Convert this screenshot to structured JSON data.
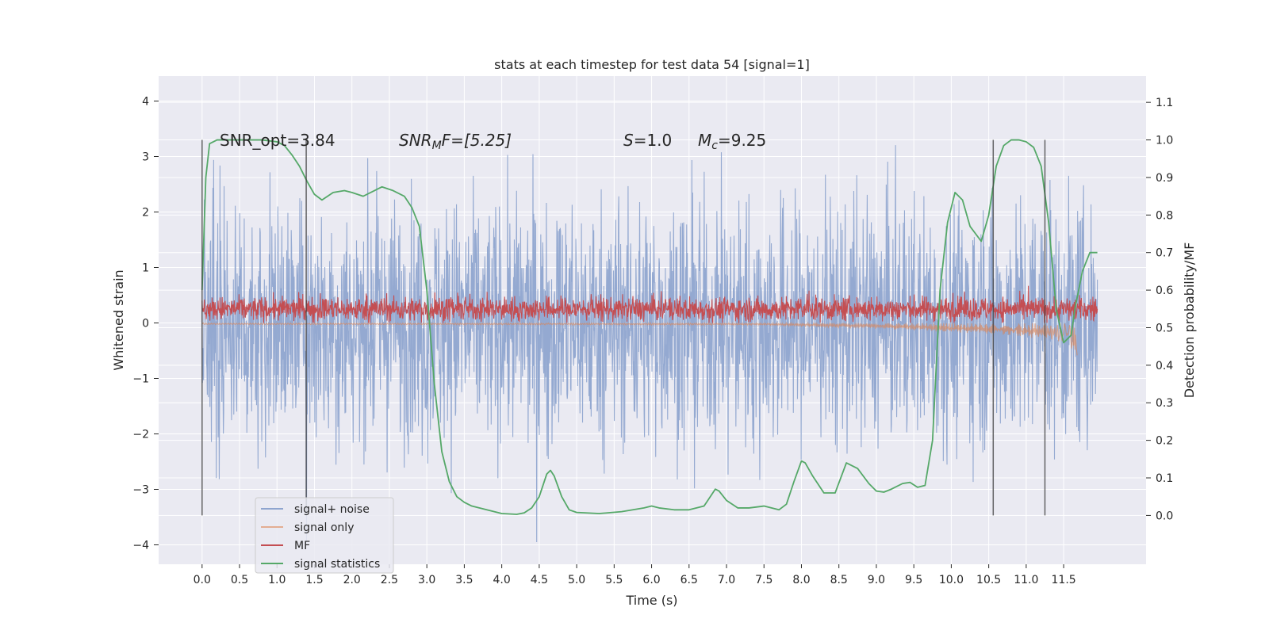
{
  "chart_data": {
    "type": "line",
    "title": "stats at each timestep for test data 54 [signal=1]",
    "xlabel": "Time (s)",
    "ylabel_left": "Whitened strain",
    "ylabel_right": "Detection probability/MF",
    "xlim": [
      -0.58,
      12.6
    ],
    "ylim_left": [
      -4.35,
      4.45
    ],
    "ylim_right": [
      -0.13,
      1.17
    ],
    "x_ticks": [
      "0.0",
      "0.5",
      "1.0",
      "1.5",
      "2.0",
      "2.5",
      "3.0",
      "3.5",
      "4.0",
      "4.5",
      "5.0",
      "5.5",
      "6.0",
      "6.5",
      "7.0",
      "7.5",
      "8.0",
      "8.5",
      "9.0",
      "9.5",
      "10.0",
      "10.5",
      "11.0",
      "11.5"
    ],
    "y_ticks_left": [
      "4",
      "3",
      "2",
      "1",
      "0",
      "−1",
      "−2",
      "−3",
      "−4"
    ],
    "y_ticks_right": [
      "1.1",
      "1.0",
      "0.9",
      "0.8",
      "0.7",
      "0.6",
      "0.5",
      "0.4",
      "0.3",
      "0.2",
      "0.1",
      "0.0"
    ],
    "grid": true,
    "legend_position": "lower-left",
    "annotations": {
      "snr_opt": "SNR_opt=3.84",
      "snr_mf": "SNR",
      "snr_mf_sub": "M",
      "snr_mf_rest": "F=[5.25]",
      "s_label": "S",
      "s_value": "=1.0",
      "mc_label": "M",
      "mc_sub": "c",
      "mc_value": "=9.25"
    },
    "colors": {
      "background": "#eaeaf2",
      "grid": "#ffffff",
      "signal_noise": "#8fa5cf",
      "signal_only": "#dd8452",
      "mf": "#c44e52",
      "statistics": "#55a868",
      "vline": "#404040"
    },
    "vertical_lines_x": [
      0.0,
      1.39,
      10.56,
      11.25
    ],
    "series": [
      {
        "name": "signal+ noise",
        "kind": "noise_band",
        "envelope_upper_approx": 2.4,
        "envelope_lower_approx": -2.4,
        "dense_core_upper": 1.35,
        "dense_core_lower": -1.35,
        "x_range": [
          0.0,
          11.95
        ]
      },
      {
        "name": "signal only",
        "kind": "chirp",
        "x_range": [
          0.0,
          11.68
        ],
        "peak_negative_near_end": -0.7
      },
      {
        "name": "MF",
        "kind": "noise_band",
        "center": 0.25,
        "envelope_upper_approx": 0.55,
        "envelope_lower_approx": 0.0,
        "x_range": [
          0.0,
          11.95
        ]
      },
      {
        "name": "signal statistics",
        "axis": "right",
        "x": [
          0.0,
          0.05,
          0.1,
          0.2,
          0.3,
          0.5,
          0.8,
          1.0,
          1.1,
          1.2,
          1.3,
          1.4,
          1.5,
          1.6,
          1.75,
          1.9,
          2.0,
          2.15,
          2.3,
          2.4,
          2.55,
          2.7,
          2.8,
          2.9,
          3.0,
          3.1,
          3.2,
          3.3,
          3.4,
          3.5,
          3.6,
          3.8,
          4.0,
          4.2,
          4.3,
          4.4,
          4.5,
          4.6,
          4.65,
          4.7,
          4.8,
          4.9,
          5.0,
          5.3,
          5.6,
          5.9,
          6.0,
          6.1,
          6.3,
          6.5,
          6.7,
          6.85,
          6.9,
          7.0,
          7.15,
          7.3,
          7.5,
          7.7,
          7.8,
          7.9,
          8.0,
          8.05,
          8.15,
          8.3,
          8.45,
          8.6,
          8.75,
          8.9,
          9.0,
          9.1,
          9.2,
          9.35,
          9.45,
          9.55,
          9.65,
          9.75,
          9.85,
          9.95,
          10.05,
          10.15,
          10.25,
          10.4,
          10.5,
          10.6,
          10.7,
          10.8,
          10.9,
          11.0,
          11.1,
          11.2,
          11.3,
          11.4,
          11.5,
          11.6,
          11.65,
          11.75,
          11.85,
          11.95
        ],
        "values": [
          0.6,
          0.9,
          0.99,
          1.0,
          1.0,
          1.0,
          1.0,
          0.995,
          0.985,
          0.96,
          0.93,
          0.89,
          0.855,
          0.84,
          0.86,
          0.865,
          0.86,
          0.85,
          0.865,
          0.875,
          0.865,
          0.85,
          0.82,
          0.77,
          0.6,
          0.35,
          0.17,
          0.09,
          0.05,
          0.035,
          0.025,
          0.015,
          0.005,
          0.003,
          0.007,
          0.02,
          0.05,
          0.11,
          0.12,
          0.105,
          0.05,
          0.015,
          0.008,
          0.005,
          0.01,
          0.02,
          0.025,
          0.02,
          0.015,
          0.015,
          0.025,
          0.07,
          0.065,
          0.04,
          0.02,
          0.02,
          0.025,
          0.015,
          0.03,
          0.09,
          0.145,
          0.14,
          0.105,
          0.06,
          0.06,
          0.14,
          0.125,
          0.085,
          0.065,
          0.062,
          0.07,
          0.085,
          0.088,
          0.075,
          0.08,
          0.2,
          0.6,
          0.78,
          0.86,
          0.84,
          0.77,
          0.73,
          0.8,
          0.93,
          0.985,
          1.0,
          1.0,
          0.995,
          0.98,
          0.93,
          0.78,
          0.55,
          0.46,
          0.48,
          0.55,
          0.65,
          0.7,
          0.7
        ]
      }
    ]
  }
}
